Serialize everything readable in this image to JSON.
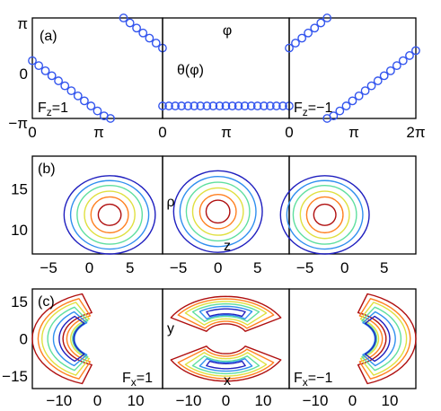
{
  "chart_data": [
    {
      "type": "scatter",
      "panel_label": "(a)",
      "colors": {
        "markers": "#3355ee"
      },
      "x_tick_labels": [
        "0",
        "π",
        "0",
        "π",
        "0",
        "π",
        "2π"
      ],
      "y_tick_labels": [
        "π",
        "0",
        "−π"
      ],
      "xlim": [
        0,
        6.2832
      ],
      "ylim": [
        -3.1416,
        3.1416
      ],
      "annotations": {
        "left": "F",
        "left_sub": "z",
        "left_eq": "=1",
        "center_top": "φ",
        "center_mid": "θ(φ)",
        "right": "F",
        "right_sub": "z",
        "right_eq": "=−1"
      },
      "subplots": [
        {
          "name": "F_z=1",
          "series": [
            {
              "x": [
                0.0,
                0.31,
                0.63,
                0.94,
                1.26,
                1.57,
                1.88,
                2.2,
                2.51,
                2.83,
                3.14,
                3.46,
                3.77,
                4.08,
                4.4
              ],
              "y": [
                0.47,
                0.16,
                -0.16,
                -0.47,
                -0.79,
                -1.1,
                -1.41,
                -1.73,
                -2.04,
                -2.36,
                -2.67,
                -2.98,
                -3.14,
                null,
                null
              ]
            },
            {
              "x": [
                4.4,
                4.71,
                5.03,
                5.34,
                5.65,
                5.97,
                6.28
              ],
              "y": [
                3.14,
                2.83,
                2.51,
                2.2,
                1.88,
                1.57,
                1.26
              ]
            }
          ]
        },
        {
          "name": "center",
          "series": [
            {
              "x": [
                0.0,
                0.31,
                0.63,
                0.94,
                1.26,
                1.57,
                1.88,
                2.2,
                2.51,
                2.83,
                3.14,
                3.46,
                3.77,
                4.08,
                4.4,
                4.71,
                5.03,
                5.34,
                5.65,
                5.97,
                6.28
              ],
              "y": [
                -2.36,
                -2.36,
                -2.36,
                -2.36,
                -2.36,
                -2.36,
                -2.36,
                -2.36,
                -2.36,
                -2.36,
                -2.36,
                -2.36,
                -2.36,
                -2.36,
                -2.36,
                -2.36,
                -2.36,
                -2.36,
                -2.36,
                -2.36,
                -2.36
              ]
            }
          ]
        },
        {
          "name": "F_z=-1",
          "series": [
            {
              "x": [
                0.0,
                0.31,
                0.63,
                0.94,
                1.26,
                1.57,
                1.88
              ],
              "y": [
                1.26,
                1.57,
                1.88,
                2.2,
                2.51,
                2.83,
                3.14
              ]
            },
            {
              "x": [
                1.88,
                2.2,
                2.51,
                2.83,
                3.14,
                3.46,
                3.77,
                4.08,
                4.4,
                4.71,
                5.03,
                5.34,
                5.65,
                5.97,
                6.28
              ],
              "y": [
                -3.14,
                -2.98,
                -2.67,
                -2.36,
                -2.04,
                -1.73,
                -1.41,
                -1.1,
                -0.79,
                -0.47,
                -0.16,
                0.16,
                0.47,
                0.79,
                1.1
              ]
            }
          ]
        }
      ]
    },
    {
      "type": "contour",
      "panel_label": "(b)",
      "colors": {
        "levels": [
          "#1f1fbf",
          "#2f8fef",
          "#5fdf9f",
          "#e0e040",
          "#ff8020",
          "#b01010"
        ]
      },
      "x_tick_labels": [
        "−5",
        "0",
        "5"
      ],
      "y_tick_labels": [
        "15",
        "10"
      ],
      "xlim": [
        -7,
        9
      ],
      "ylim": [
        7,
        19
      ],
      "annotations": {
        "center_y": "ρ",
        "center_x": "z"
      },
      "subplots": [
        {
          "name": "F_z=1",
          "center": [
            2.5,
            11.8
          ],
          "semi_axes": [
            [
              5.6,
              4.8
            ],
            [
              4.8,
              4.2
            ],
            [
              4.0,
              3.6
            ],
            [
              3.1,
              2.9
            ],
            [
              2.3,
              2.2
            ],
            [
              1.4,
              1.3
            ]
          ]
        },
        {
          "name": "center",
          "center": [
            0,
            12.2
          ],
          "semi_axes": [
            [
              5.6,
              5.0
            ],
            [
              4.8,
              4.3
            ],
            [
              4.0,
              3.6
            ],
            [
              3.2,
              2.9
            ],
            [
              2.3,
              2.1
            ],
            [
              1.5,
              1.4
            ]
          ]
        },
        {
          "name": "F_z=-1",
          "center": [
            -2.5,
            11.8
          ],
          "semi_axes": [
            [
              5.6,
              4.8
            ],
            [
              4.8,
              4.2
            ],
            [
              4.0,
              3.6
            ],
            [
              3.1,
              2.9
            ],
            [
              2.3,
              2.2
            ],
            [
              1.4,
              1.3
            ]
          ]
        }
      ]
    },
    {
      "type": "contour",
      "panel_label": "(c)",
      "colors": {
        "levels": [
          "#b01010",
          "#ff8020",
          "#e0e040",
          "#5fdf9f",
          "#2f8fef",
          "#1f1fbf"
        ]
      },
      "x_tick_labels": [
        "−10",
        "0",
        "10"
      ],
      "y_tick_labels": [
        "15",
        "0",
        "−15"
      ],
      "xlim": [
        -17,
        17
      ],
      "ylim": [
        -20,
        20
      ],
      "annotations": {
        "left": "F",
        "left_sub": "x",
        "left_eq": "=1",
        "center_y": "y",
        "center_x": "x",
        "right": "F",
        "right_sub": "x",
        "right_eq": "=−1"
      },
      "subplots": [
        {
          "name": "F_x=1",
          "shape": "crescent",
          "opens": "right",
          "center": [
            2,
            0
          ],
          "radii": [
            [
              11,
              19
            ],
            [
              10,
              17.5
            ],
            [
              9,
              16.5
            ],
            [
              8.5,
              15
            ],
            [
              8,
              13.5
            ],
            [
              8.2,
              12
            ]
          ]
        },
        {
          "name": "center",
          "shape": "two-arcs",
          "center": [
            0,
            0
          ],
          "radii": [
            [
              6,
              17
            ],
            [
              7,
              16
            ],
            [
              8,
              15
            ],
            [
              9,
              14
            ],
            [
              9.5,
              13
            ],
            [
              10,
              12
            ]
          ]
        },
        {
          "name": "F_x=-1",
          "shape": "crescent",
          "opens": "left",
          "center": [
            -2,
            0
          ],
          "radii": [
            [
              11,
              19
            ],
            [
              10,
              17.5
            ],
            [
              9,
              16.5
            ],
            [
              8.5,
              15
            ],
            [
              8,
              13.5
            ],
            [
              8.2,
              12
            ]
          ]
        }
      ]
    }
  ]
}
